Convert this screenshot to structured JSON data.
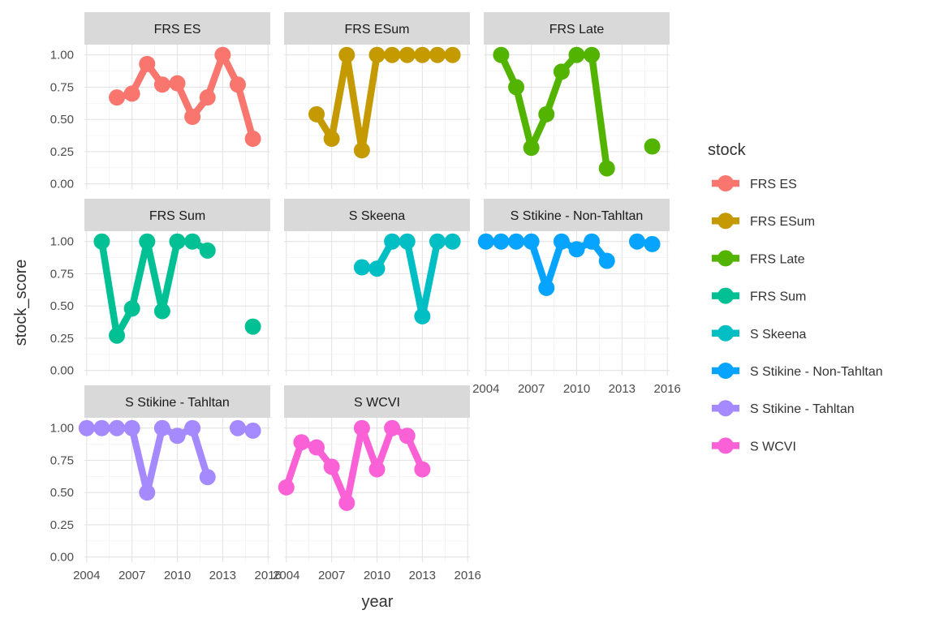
{
  "chart_data": {
    "type": "line",
    "facet_by": "stock",
    "xlabel": "year",
    "ylabel": "stock_score",
    "xlim": [
      2003.85,
      2016.15
    ],
    "ylim": [
      -0.04,
      1.08
    ],
    "x_ticks": [
      2004,
      2007,
      2010,
      2013,
      2016
    ],
    "x_tick_labels": [
      "2004",
      "2007",
      "2010",
      "2013",
      "2016"
    ],
    "y_ticks": [
      0,
      0.25,
      0.5,
      0.75,
      1.0
    ],
    "y_tick_labels": [
      "0.00",
      "0.25",
      "0.50",
      "0.75",
      "1.00"
    ],
    "grid": true,
    "legend": {
      "title": "stock",
      "position": "right"
    },
    "series": [
      {
        "name": "FRS ES",
        "color": "#F8766D",
        "points": [
          [
            2006,
            0.67
          ],
          [
            2007,
            0.7
          ],
          [
            2008,
            0.93
          ],
          [
            2009,
            0.77
          ],
          [
            2010,
            0.78
          ],
          [
            2011,
            0.52
          ],
          [
            2012,
            0.67
          ],
          [
            2013,
            1.0
          ],
          [
            2014,
            0.77
          ],
          [
            2015,
            0.35
          ]
        ]
      },
      {
        "name": "FRS ESum",
        "color": "#C49A00",
        "points": [
          [
            2006,
            0.54
          ],
          [
            2007,
            0.35
          ],
          [
            2008,
            1.0
          ],
          [
            2009,
            0.26
          ],
          [
            2010,
            1.0
          ],
          [
            2011,
            1.0
          ],
          [
            2012,
            1.0
          ],
          [
            2013,
            1.0
          ],
          [
            2014,
            1.0
          ],
          [
            2015,
            1.0
          ]
        ]
      },
      {
        "name": "FRS Late",
        "color": "#53B400",
        "points": [
          [
            2005,
            1.0
          ],
          [
            2006,
            0.75
          ],
          [
            2007,
            0.28
          ],
          [
            2008,
            0.54
          ],
          [
            2009,
            0.87
          ],
          [
            2010,
            1.0
          ],
          [
            2011,
            1.0
          ],
          [
            2012,
            0.12
          ],
          [
            2015,
            0.29
          ]
        ]
      },
      {
        "name": "FRS Sum",
        "color": "#00C094",
        "points": [
          [
            2005,
            1.0
          ],
          [
            2006,
            0.27
          ],
          [
            2007,
            0.48
          ],
          [
            2008,
            1.0
          ],
          [
            2009,
            0.46
          ],
          [
            2010,
            1.0
          ],
          [
            2011,
            1.0
          ],
          [
            2012,
            0.93
          ],
          [
            2015,
            0.34
          ]
        ]
      },
      {
        "name": "S Skeena",
        "color": "#00B6EB",
        "points": [
          [
            2009,
            0.8
          ],
          [
            2010,
            0.79
          ],
          [
            2011,
            1.0
          ],
          [
            2012,
            1.0
          ],
          [
            2013,
            0.42
          ],
          [
            2014,
            1.0
          ],
          [
            2015,
            1.0
          ]
        ]
      },
      {
        "name": "S Stikine - Non-Tahltan",
        "color": "#00B6EB",
        "points": [
          [
            2004,
            1.0
          ],
          [
            2005,
            1.0
          ],
          [
            2006,
            1.0
          ],
          [
            2007,
            1.0
          ],
          [
            2008,
            0.64
          ],
          [
            2009,
            1.0
          ],
          [
            2010,
            0.94
          ],
          [
            2011,
            1.0
          ],
          [
            2012,
            0.85
          ],
          [
            2014,
            1.0
          ],
          [
            2015,
            0.98
          ]
        ]
      },
      {
        "name": "S Stikine - Tahltan",
        "color": "#A58AFF",
        "points": [
          [
            2004,
            1.0
          ],
          [
            2005,
            1.0
          ],
          [
            2006,
            1.0
          ],
          [
            2007,
            1.0
          ],
          [
            2008,
            0.5
          ],
          [
            2009,
            1.0
          ],
          [
            2010,
            0.94
          ],
          [
            2011,
            1.0
          ],
          [
            2012,
            0.62
          ],
          [
            2014,
            1.0
          ],
          [
            2015,
            0.98
          ]
        ]
      },
      {
        "name": "S WCVI",
        "color": "#FB61D7",
        "points": [
          [
            2004,
            0.54
          ],
          [
            2005,
            0.89
          ],
          [
            2006,
            0.85
          ],
          [
            2007,
            0.7
          ],
          [
            2008,
            0.42
          ],
          [
            2009,
            1.0
          ],
          [
            2010,
            0.68
          ],
          [
            2011,
            1.0
          ],
          [
            2012,
            0.94
          ],
          [
            2013,
            0.68
          ]
        ]
      }
    ]
  }
}
